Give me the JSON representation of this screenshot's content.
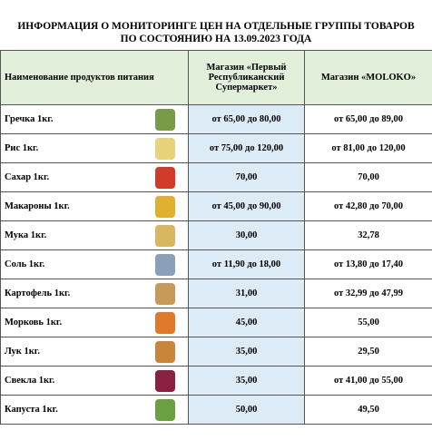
{
  "title": [
    "ИНФОРМАЦИЯ О МОНИТОРИНГЕ ЦЕН НА ОТДЕЛЬНЫЕ ГРУППЫ ТОВАРОВ",
    "ПО СОСТОЯНИЮ НА 13.09.2023 ГОДА"
  ],
  "table": {
    "header": [
      "Наименование продуктов питания",
      "Магазин «Первый Республиканский Супермаркет»",
      "Магазин «MOLOKO»"
    ],
    "rows": [
      [
        "Гречка 1кг.",
        "от 65,00 до 80,00",
        "от 65,00 до 89,00"
      ],
      [
        "Рис 1кг.",
        "от 75,00 до 120,00",
        "от 81,00 до 120,00"
      ],
      [
        "Сахар 1кг.",
        "70,00",
        "70,00"
      ],
      [
        "Макароны 1кг.",
        "от 45,00 до 90,00",
        "от 42,80 до 70,00"
      ],
      [
        "Мука 1кг.",
        "30,00",
        "32,78"
      ],
      [
        "Соль 1кг.",
        "от 11,90 до 18,00",
        "от 13,80 до 17,40"
      ],
      [
        "Картофель 1кг.",
        "31,00",
        "от 32,99 до 47,99"
      ],
      [
        "Морковь 1кг.",
        "45,00",
        "55,00"
      ],
      [
        "Лук 1кг.",
        "35,00",
        "29,50"
      ],
      [
        "Свекла 1кг.",
        "35,00",
        "от 41,00 до 55,00"
      ],
      [
        "Капуста 1кг.",
        "50,00",
        "49,50"
      ]
    ]
  }
}
